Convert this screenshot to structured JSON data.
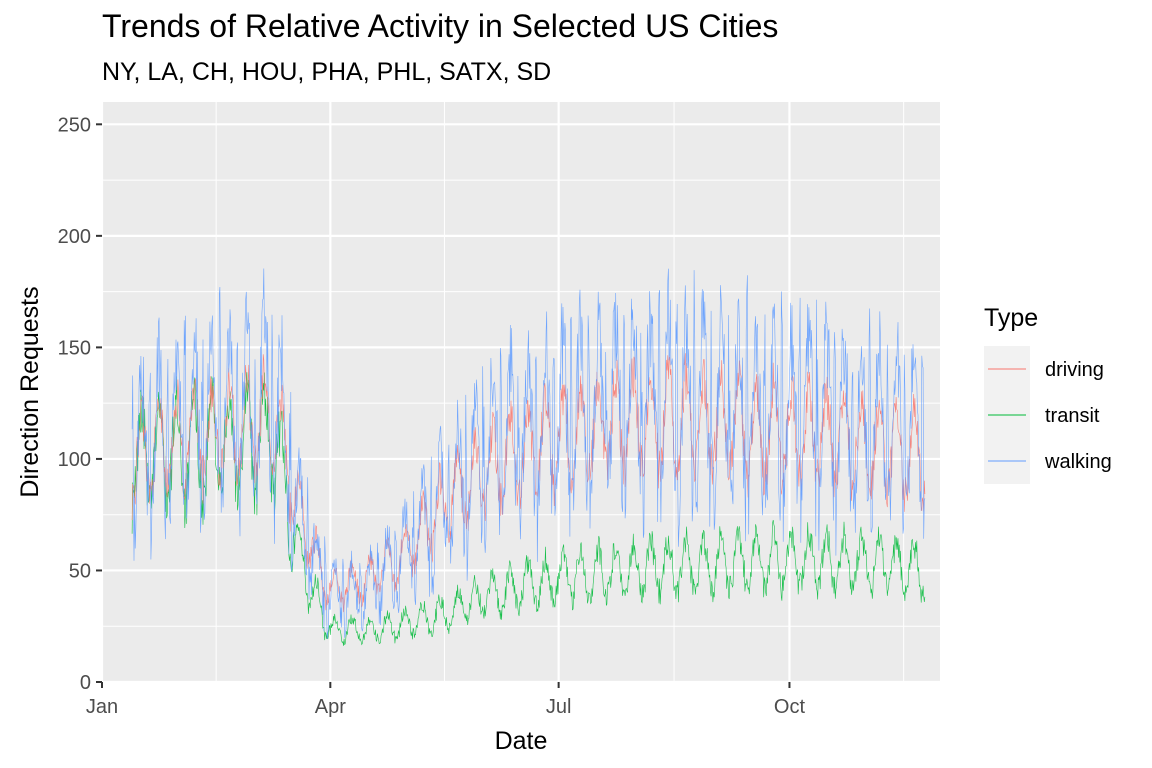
{
  "chart_data": {
    "type": "line",
    "title": "Trends of Relative Activity in Selected US Cities",
    "subtitle": "NY, LA, CH, HOU, PHA, PHL, SATX, SD",
    "xlabel": "Date",
    "ylabel": "Direction Requests",
    "x_range": [
      "2020-01-01",
      "2020-11-30"
    ],
    "ylim": [
      0,
      260
    ],
    "x_ticks": [
      {
        "label": "Jan",
        "date": "2020-01-01"
      },
      {
        "label": "Apr",
        "date": "2020-04-01"
      },
      {
        "label": "Jul",
        "date": "2020-07-01"
      },
      {
        "label": "Oct",
        "date": "2020-10-01"
      }
    ],
    "y_ticks": [
      0,
      50,
      100,
      150,
      200,
      250
    ],
    "grid": true,
    "legend": {
      "title": "Type",
      "placement": "right"
    },
    "series": [
      {
        "name": "driving",
        "color": "#F8766D",
        "profile": [
          [
            "2020-01-13",
            100
          ],
          [
            "2020-01-31",
            108
          ],
          [
            "2020-02-29",
            115
          ],
          [
            "2020-03-10",
            118
          ],
          [
            "2020-03-20",
            75
          ],
          [
            "2020-03-31",
            42
          ],
          [
            "2020-04-15",
            45
          ],
          [
            "2020-05-01",
            58
          ],
          [
            "2020-05-15",
            78
          ],
          [
            "2020-06-01",
            95
          ],
          [
            "2020-07-01",
            110
          ],
          [
            "2020-08-01",
            118
          ],
          [
            "2020-09-01",
            115
          ],
          [
            "2020-10-01",
            112
          ],
          [
            "2020-11-01",
            108
          ],
          [
            "2020-11-24",
            100
          ]
        ]
      },
      {
        "name": "transit",
        "color": "#00BA38",
        "profile": [
          [
            "2020-01-13",
            100
          ],
          [
            "2020-01-31",
            103
          ],
          [
            "2020-02-29",
            108
          ],
          [
            "2020-03-10",
            108
          ],
          [
            "2020-03-20",
            55
          ],
          [
            "2020-03-31",
            24
          ],
          [
            "2020-04-15",
            23
          ],
          [
            "2020-05-01",
            26
          ],
          [
            "2020-05-15",
            30
          ],
          [
            "2020-06-01",
            38
          ],
          [
            "2020-07-01",
            47
          ],
          [
            "2020-08-01",
            51
          ],
          [
            "2020-09-01",
            53
          ],
          [
            "2020-10-01",
            55
          ],
          [
            "2020-11-01",
            53
          ],
          [
            "2020-11-24",
            50
          ]
        ]
      },
      {
        "name": "walking",
        "color": "#619CFF",
        "profile": [
          [
            "2020-01-13",
            100
          ],
          [
            "2020-01-31",
            110
          ],
          [
            "2020-02-29",
            118
          ],
          [
            "2020-03-10",
            125
          ],
          [
            "2020-03-20",
            70
          ],
          [
            "2020-03-31",
            38
          ],
          [
            "2020-04-15",
            40
          ],
          [
            "2020-05-01",
            55
          ],
          [
            "2020-05-15",
            75
          ],
          [
            "2020-06-01",
            100
          ],
          [
            "2020-07-01",
            115
          ],
          [
            "2020-08-01",
            122
          ],
          [
            "2020-09-01",
            118
          ],
          [
            "2020-10-01",
            115
          ],
          [
            "2020-11-01",
            110
          ],
          [
            "2020-11-24",
            105
          ]
        ]
      }
    ]
  }
}
